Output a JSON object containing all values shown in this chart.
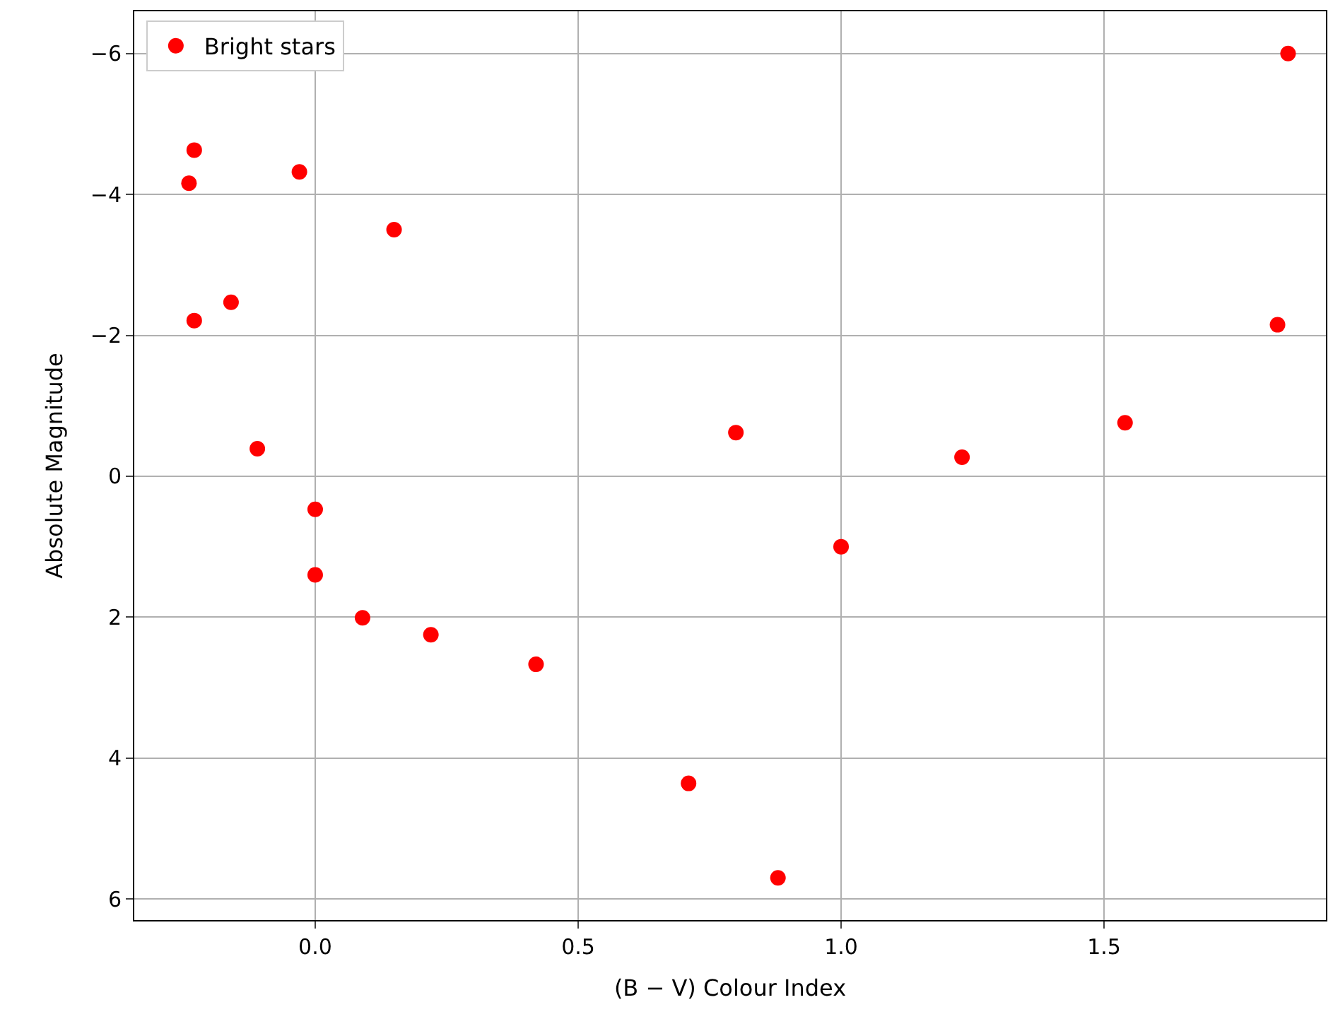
{
  "chart_data": {
    "type": "scatter",
    "xlabel": "(B − V) Colour Index",
    "ylabel": "Absolute Magnitude",
    "x": [
      -0.24,
      -0.23,
      -0.23,
      -0.16,
      -0.03,
      0.15,
      -0.11,
      0.0,
      0.0,
      0.09,
      0.22,
      0.42,
      0.71,
      0.88,
      0.8,
      1.0,
      1.23,
      1.54,
      1.83,
      1.85
    ],
    "series": [
      {
        "name": "Bright stars",
        "color": "#ff0000",
        "values": [
          -4.16,
          -4.63,
          -2.21,
          -2.47,
          -4.32,
          -3.5,
          -0.39,
          0.47,
          1.4,
          2.01,
          2.25,
          2.67,
          4.36,
          5.7,
          -0.62,
          1.0,
          -0.27,
          -0.76,
          -2.15,
          -6.0
        ]
      }
    ],
    "xlim": [
      -0.344,
      1.922
    ],
    "xticks": [
      {
        "value": 0,
        "label": "0.0"
      },
      0.5,
      {
        "value": 1,
        "label": "1.0"
      },
      1.5
    ],
    "ylim": [
      6.3,
      -6.6
    ],
    "yticks": [
      {
        "value": 6,
        "label": "6"
      },
      4,
      2,
      0,
      {
        "value": -2,
        "label": "−2"
      },
      {
        "value": -4,
        "label": "−4"
      },
      {
        "value": -6,
        "label": "−6"
      }
    ],
    "grid": true,
    "legend": "top left",
    "marker": "circle"
  }
}
